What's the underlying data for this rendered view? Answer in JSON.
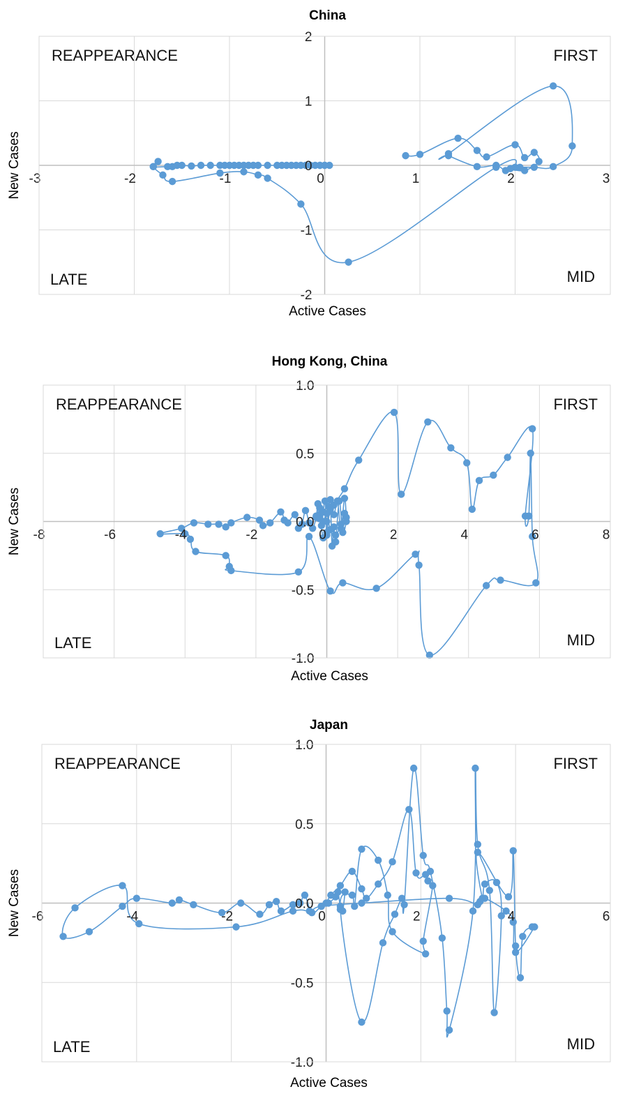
{
  "style": {
    "series_color": "#5b9bd5",
    "grid_color": "#d9d9d9",
    "axis_color": "#bfbfbf"
  },
  "chart_data": [
    {
      "type": "scatter",
      "line": "smooth",
      "title": "China",
      "xlabel": "Active Cases",
      "ylabel": "New Cases",
      "xlim": [
        -3,
        3
      ],
      "ylim": [
        -2,
        2
      ],
      "xticks": [
        -3,
        -2,
        -1,
        0,
        1,
        2,
        3
      ],
      "yticks": [
        -2,
        -1,
        0,
        1,
        2
      ],
      "xtick_labels": [
        "-3",
        "-2",
        "-1",
        "0",
        "1",
        "2",
        "3"
      ],
      "ytick_labels": [
        "-2",
        "-1",
        "0",
        "1",
        "2"
      ],
      "quadrants": {
        "top_left": "REAPPEARANCE",
        "top_right": "FIRST",
        "bottom_left": "LATE",
        "bottom_right": "MID"
      },
      "grid": true,
      "series": [
        {
          "x": [
            0.85,
            1.0,
            1.4,
            1.6,
            1.7,
            2.0,
            2.1,
            2.2,
            2.25,
            2.1,
            1.95,
            2.05,
            2.2,
            2.4,
            2.6,
            2.4,
            1.3,
            1.3,
            1.6,
            1.8,
            1.9,
            2.0,
            1.8,
            0.25,
            -0.25,
            -0.6,
            -0.7,
            -0.85,
            -1.1,
            -1.6,
            -1.7,
            -1.8,
            -1.75,
            -1.8,
            -1.65,
            -1.6,
            -1.55,
            -1.5,
            -1.4,
            -1.3,
            -1.2,
            -1.1,
            -1.05,
            -1.0,
            -0.95,
            -0.9,
            -0.85,
            -0.8,
            -0.75,
            -0.7,
            -0.6,
            -0.5,
            -0.45,
            -0.4,
            -0.35,
            -0.3,
            -0.25,
            -0.2,
            -0.15,
            -0.1,
            -0.05,
            0.0,
            0.05,
            -0.05,
            0.0
          ],
          "y": [
            0.15,
            0.17,
            0.42,
            0.23,
            0.13,
            0.32,
            0.12,
            0.2,
            0.06,
            -0.08,
            -0.05,
            -0.03,
            -0.03,
            -0.02,
            0.3,
            1.23,
            0.18,
            0.15,
            -0.02,
            0.0,
            -0.08,
            -0.03,
            -0.03,
            -1.5,
            -0.6,
            -0.2,
            -0.15,
            -0.1,
            -0.12,
            -0.25,
            -0.15,
            -0.02,
            0.06,
            -0.02,
            -0.02,
            -0.02,
            0.0,
            0.0,
            -0.01,
            0.0,
            0.0,
            0.0,
            0.0,
            0.0,
            0.0,
            0.0,
            0.0,
            0.0,
            0.0,
            0.0,
            0.0,
            0.0,
            0.0,
            0.0,
            0.0,
            0.0,
            0.0,
            0.0,
            0.0,
            0.0,
            0.0,
            0.0,
            0.0,
            0.0,
            0.0
          ]
        }
      ]
    },
    {
      "type": "scatter",
      "line": "smooth",
      "title": "Hong Kong, China",
      "xlabel": "Active Cases",
      "ylabel": "New Cases",
      "xlim": [
        -8,
        8
      ],
      "ylim": [
        -1.0,
        1.0
      ],
      "xticks": [
        -8,
        -6,
        -4,
        -2,
        0,
        2,
        4,
        6,
        8
      ],
      "yticks": [
        -1.0,
        -0.5,
        0.0,
        0.5,
        1.0
      ],
      "xtick_labels": [
        "-8",
        "-6",
        "-4",
        "-2",
        "0",
        "2",
        "4",
        "6",
        "8"
      ],
      "ytick_labels": [
        "-1.0",
        "-0.5",
        "0.0",
        "0.5",
        "1.0"
      ],
      "quadrants": {
        "top_left": "REAPPEARANCE",
        "top_right": "FIRST",
        "bottom_left": "LATE",
        "bottom_right": "MID"
      },
      "grid": true,
      "series": [
        {
          "x": [
            0.0,
            0.2,
            0.5,
            0.9,
            1.9,
            2.1,
            2.85,
            3.5,
            3.95,
            4.1,
            4.3,
            4.7,
            5.1,
            5.8,
            5.6,
            5.7,
            5.75,
            5.8,
            5.9,
            4.9,
            4.5,
            2.9,
            2.6,
            2.5,
            1.4,
            0.45,
            0.1,
            -0.5,
            -0.8,
            -2.7,
            -2.75,
            -2.85,
            -3.7,
            -3.85,
            -4.0,
            -4.7,
            -4.1,
            -3.75,
            -3.35,
            -3.05,
            -2.85,
            -2.7,
            -2.25,
            -1.9,
            -1.8,
            -1.6,
            -1.3,
            -1.2,
            -1.1,
            -0.9,
            -0.8,
            -0.7,
            -0.6,
            -0.5,
            -0.4,
            -0.3,
            -0.25,
            -0.2,
            -0.15,
            -0.1,
            -0.05,
            0.0,
            0.05,
            0.1,
            0.2,
            0.3,
            0.4,
            0.5,
            0.55,
            0.55,
            0.45,
            0.35,
            0.25,
            0.2,
            0.15,
            0.1,
            0.0,
            -0.1,
            -0.2,
            -0.3,
            -0.2,
            -0.1,
            0.0,
            0.1,
            0.25,
            0.4,
            0.5
          ],
          "y": [
            0.0,
            0.12,
            0.24,
            0.45,
            0.8,
            0.2,
            0.73,
            0.54,
            0.43,
            0.09,
            0.3,
            0.34,
            0.47,
            0.68,
            0.04,
            0.04,
            0.5,
            -0.11,
            -0.45,
            -0.43,
            -0.47,
            -0.98,
            -0.32,
            -0.24,
            -0.49,
            -0.45,
            -0.51,
            -0.11,
            -0.37,
            -0.36,
            -0.33,
            -0.25,
            -0.22,
            -0.13,
            -0.09,
            -0.09,
            -0.05,
            -0.01,
            -0.02,
            -0.02,
            -0.04,
            -0.01,
            0.03,
            0.01,
            -0.03,
            -0.01,
            0.07,
            0.01,
            -0.01,
            0.05,
            -0.05,
            -0.02,
            0.08,
            -0.01,
            -0.05,
            0.03,
            0.13,
            0.05,
            -0.03,
            0.07,
            0.15,
            -0.1,
            0.11,
            0.16,
            0.05,
            0.15,
            -0.05,
            0.17,
            0.03,
            0.0,
            -0.08,
            0.15,
            -0.15,
            -0.04,
            -0.18,
            0.09,
            -0.08,
            -0.12,
            0.02,
            0.04,
            0.1,
            0.0,
            0.06,
            -0.06,
            -0.1,
            -0.02,
            0.06
          ]
        }
      ]
    },
    {
      "type": "scatter",
      "line": "smooth",
      "title": "Japan",
      "xlabel": "Active Cases",
      "ylabel": "New Cases",
      "xlim": [
        -6,
        6
      ],
      "ylim": [
        -1.0,
        1.0
      ],
      "xticks": [
        -6,
        -4,
        -2,
        0,
        2,
        4,
        6
      ],
      "yticks": [
        -1.0,
        -0.5,
        0.0,
        0.5,
        1.0
      ],
      "xtick_labels": [
        "-6",
        "-4",
        "-2",
        "0",
        "2",
        "4",
        "6"
      ],
      "ytick_labels": [
        "-1.0",
        "-0.5",
        "0.0",
        "0.5",
        "1.0"
      ],
      "quadrants": {
        "top_left": "REAPPEARANCE",
        "top_right": "FIRST",
        "bottom_left": "LATE",
        "bottom_right": "MID"
      },
      "grid": true,
      "series": [
        {
          "x": [
            0.0,
            0.1,
            0.3,
            0.55,
            0.75,
            0.85,
            1.1,
            1.4,
            1.75,
            1.9,
            2.1,
            2.15,
            2.25,
            2.05,
            2.1,
            1.4,
            1.3,
            1.1,
            0.75,
            0.6,
            0.55,
            0.3,
            0.75,
            1.2,
            1.45,
            1.6,
            1.65,
            1.85,
            2.05,
            2.2,
            2.45,
            2.55,
            2.6,
            3.1,
            3.15,
            3.2,
            3.45,
            3.55,
            3.7,
            3.6,
            3.35,
            3.3,
            3.2,
            3.85,
            3.95,
            4.0,
            4.1,
            4.15,
            4.35,
            4.4,
            4.0,
            3.95,
            3.8,
            3.35,
            3.25,
            3.2,
            2.6,
            0.75,
            -0.1,
            -0.35,
            -0.7,
            -1.9,
            -3.95,
            -4.3,
            -5.3,
            -5.55,
            -5.0,
            -4.3,
            -4.0,
            -3.25,
            -3.1,
            -2.8,
            -2.2,
            -1.8,
            -1.4,
            -1.2,
            -1.05,
            -0.95,
            -0.7,
            -0.55,
            -0.45,
            -0.3,
            -0.1,
            0.05,
            0.2,
            0.25,
            0.3,
            0.35,
            0.4
          ],
          "y": [
            0.0,
            0.05,
            0.11,
            0.2,
            0.09,
            0.03,
            0.12,
            0.26,
            0.59,
            0.19,
            0.18,
            0.14,
            0.11,
            -0.24,
            -0.32,
            -0.18,
            0.05,
            0.27,
            0.34,
            -0.02,
            0.05,
            -0.04,
            -0.75,
            -0.25,
            -0.07,
            0.03,
            -0.01,
            0.85,
            0.3,
            0.2,
            -0.22,
            -0.68,
            -0.8,
            -0.05,
            0.85,
            0.37,
            0.08,
            -0.69,
            -0.08,
            0.13,
            0.12,
            0.03,
            0.32,
            0.04,
            0.33,
            -0.27,
            -0.47,
            -0.21,
            -0.15,
            -0.15,
            -0.31,
            -0.12,
            -0.05,
            0.03,
            0.01,
            -0.01,
            0.03,
            0.0,
            -0.02,
            -0.05,
            -0.05,
            -0.15,
            -0.13,
            0.11,
            -0.03,
            -0.21,
            -0.18,
            -0.02,
            0.03,
            0.0,
            0.02,
            -0.01,
            -0.06,
            0.0,
            -0.07,
            -0.01,
            0.01,
            -0.05,
            -0.01,
            0.0,
            0.05,
            -0.06,
            -0.02,
            0.0,
            0.04,
            0.07,
            -0.02,
            -0.05,
            0.07
          ]
        }
      ]
    }
  ]
}
